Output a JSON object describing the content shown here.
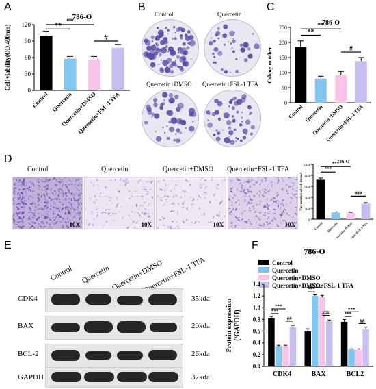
{
  "panel_letters": {
    "a": "A",
    "b": "B",
    "c": "C",
    "d": "D",
    "e": "E",
    "f": "F"
  },
  "colors": {
    "control": "#000000",
    "quercetin": "#83c6f0",
    "dmso": "#f9c4ea",
    "fsl": "#c6bdf1",
    "stain": "#5a4aa8"
  },
  "panel_b": {
    "labels": [
      "Control",
      "Quercetin",
      "Quercetin+DMSO",
      "Quercetin+FSL-1 TFA"
    ]
  },
  "panel_d": {
    "labels": [
      "Control",
      "Quercetin",
      "Quercetin+DMSO",
      "Quercetin+FSL-1 TFA"
    ],
    "magnification": "10X"
  },
  "panel_e": {
    "columns": [
      "Control",
      "Quercetin",
      "Quercetin+DMSO",
      "Quercetin+FSL-1 TFA"
    ],
    "rows": [
      {
        "name": "CDK4",
        "kda": "35kda"
      },
      {
        "name": "BAX",
        "kda": "20kda"
      },
      {
        "name": "BCL-2",
        "kda": "26kda"
      },
      {
        "name": "GAPDH",
        "kda": "37kda"
      }
    ]
  },
  "chart_data": [
    {
      "id": "A",
      "type": "bar",
      "title": "786-O",
      "ylabel": "Cell viability(OD,490nm)",
      "categories": [
        "Control",
        "Quercetin",
        "Quercetin+DMSO",
        "Quercetin+FSL-1 TFA"
      ],
      "values": [
        100,
        58,
        57,
        78
      ],
      "errors": [
        8,
        4,
        5,
        6
      ],
      "ylim": [
        0,
        120
      ],
      "yticks": [
        "0",
        "30",
        "60",
        "90",
        "120"
      ],
      "significance": [
        "**",
        "**",
        "#"
      ]
    },
    {
      "id": "C",
      "type": "bar",
      "title": "786-O",
      "ylabel": "Colony number",
      "categories": [
        "Control",
        "Quercetin",
        "Quercetin+DMSO",
        "Quercetin+FSL-1 TFA"
      ],
      "values": [
        185,
        80,
        92,
        138
      ],
      "errors": [
        20,
        8,
        12,
        12
      ],
      "ylim": [
        0,
        250
      ],
      "yticks": [
        "0",
        "50",
        "100",
        "150",
        "200",
        "250"
      ],
      "significance": [
        "**",
        "**",
        "#"
      ]
    },
    {
      "id": "D",
      "type": "bar",
      "title": "786-O",
      "ylabel": "The number of cell invaed",
      "categories": [
        "Control",
        "Quercetin",
        "Quercetin+DMSO",
        "Quercetin+FSL-1 TFA"
      ],
      "values": [
        720,
        120,
        115,
        280
      ],
      "errors": [
        30,
        12,
        12,
        20
      ],
      "ylim": [
        0,
        1000
      ],
      "yticks": [
        "0",
        "200",
        "400",
        "600",
        "800",
        "1000"
      ],
      "significance": [
        "***",
        "***",
        "###"
      ]
    },
    {
      "id": "F",
      "type": "bar",
      "title": "786-O",
      "ylabel": "Protein expression (/GAPDH)",
      "categories": [
        "CDK4",
        "BAX",
        "BCL2"
      ],
      "ylim": [
        0,
        1.4
      ],
      "yticks": [
        "0.0",
        "0.2",
        "0.4",
        "0.6",
        "0.8",
        "1.0",
        "1.2",
        "1.4"
      ],
      "series": [
        {
          "name": "Control",
          "values": [
            0.82,
            0.6,
            0.76
          ],
          "errors": [
            0.03,
            0.04,
            0.04
          ]
        },
        {
          "name": "Quercetin",
          "values": [
            0.35,
            1.2,
            0.29
          ],
          "errors": [
            0.01,
            0.02,
            0.01
          ]
        },
        {
          "name": "Quercetin+DMSO",
          "values": [
            0.35,
            1.18,
            0.29
          ],
          "errors": [
            0.01,
            0.03,
            0.01
          ]
        },
        {
          "name": "Quercetin+DMSO+FSL-1 TFA",
          "values": [
            0.67,
            0.77,
            0.63
          ],
          "errors": [
            0.03,
            0.02,
            0.04
          ]
        }
      ],
      "annotations": [
        [
          "***",
          "***",
          "##"
        ],
        [
          "***",
          "***",
          "###"
        ],
        [
          "***",
          "***",
          "##"
        ]
      ]
    }
  ]
}
